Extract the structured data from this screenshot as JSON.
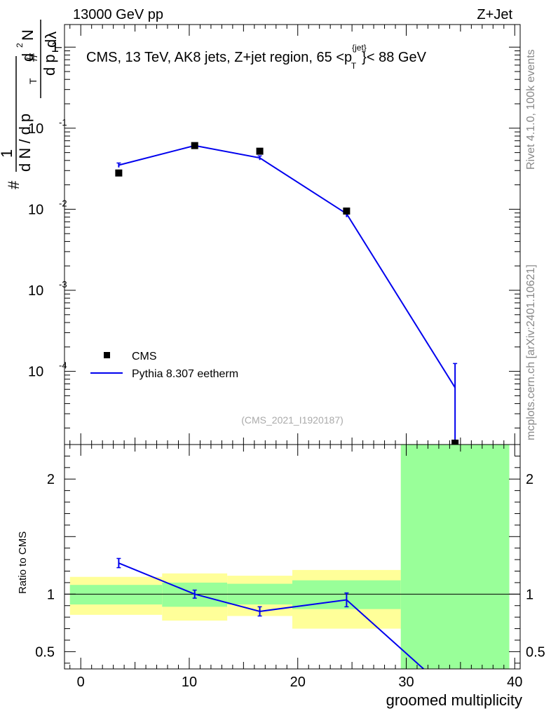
{
  "header": {
    "left_label": "13000 GeV pp",
    "right_label": "Z+Jet"
  },
  "side_labels": {
    "rivet": "Rivet 4.1.0,  100k events",
    "mcplots": "mcplots.cern.ch [arXiv:2401.10621]"
  },
  "chart_data": [
    {
      "type": "scatter",
      "panel": "main",
      "title": "CMS, 13 TeV, AK8 jets, Z+jet region, 65 <p",
      "title_super": "{jet}",
      "title_sub": "T",
      "title_tail": "}< 88 GeV",
      "watermark": "(CMS_2021_I1920187)",
      "ylabel_parts": {
        "hash1": "#",
        "one": "1",
        "dN": "d N / d p",
        "T1": "T",
        "hash2": "#",
        "dp": "d p",
        "T2": "T",
        "d2N": "d",
        "sup2": "2",
        "N": "N",
        "dlambda": "dλ"
      },
      "yscale": "log",
      "ylim": [
        1.25e-05,
        1.9
      ],
      "xlim": [
        -1.5,
        40.5
      ],
      "y_ticks": [
        {
          "value": 1,
          "base": "1",
          "exp": ""
        },
        {
          "value": 0.1,
          "base": "10",
          "exp": "-1"
        },
        {
          "value": 0.01,
          "base": "10",
          "exp": "-2"
        },
        {
          "value": 0.001,
          "base": "10",
          "exp": "-3"
        },
        {
          "value": 0.0001,
          "base": "10",
          "exp": "-4"
        }
      ],
      "legend": [
        {
          "label": "CMS",
          "marker": "square",
          "color": "#000000"
        },
        {
          "label": "Pythia 8.307 eetherm",
          "marker": "line",
          "color": "#0000ee"
        }
      ],
      "series": [
        {
          "name": "CMS",
          "color": "#000000",
          "x": [
            3.5,
            10.5,
            16.5,
            24.5,
            34.5
          ],
          "y": [
            0.028,
            0.061,
            0.052,
            0.0095,
            1.25e-05
          ]
        },
        {
          "name": "Pythia 8.307 eetherm",
          "color": "#0000ee",
          "x": [
            3.5,
            10.5,
            16.5,
            24.5,
            34.5
          ],
          "y": [
            0.035,
            0.061,
            0.043,
            0.0088,
            6.3e-05
          ],
          "err_lo": [
            0.0022,
            0.0025,
            0.0025,
            0.0008,
            5.8e-05
          ],
          "err_hi": [
            0.0022,
            0.0025,
            0.0025,
            0.0008,
            6.2e-05
          ]
        }
      ]
    },
    {
      "type": "line",
      "panel": "ratio",
      "ylabel": "Ratio to CMS",
      "xlabel": "groomed multiplicity",
      "ylim": [
        0.35,
        2.3
      ],
      "xlim": [
        -1.5,
        40.5
      ],
      "x_ticks": [
        0,
        10,
        20,
        30,
        40
      ],
      "y_ticks": [
        {
          "value": 0.5,
          "label": "0.5"
        },
        {
          "value": 1,
          "label": "1"
        },
        {
          "value": 2,
          "label": "2"
        }
      ],
      "bands": [
        {
          "x0": -1,
          "x1": 7.5,
          "green": [
            0.91,
            1.08
          ],
          "yellow": [
            0.82,
            1.15
          ]
        },
        {
          "x0": 7.5,
          "x1": 13.5,
          "green": [
            0.89,
            1.1
          ],
          "yellow": [
            0.77,
            1.18
          ]
        },
        {
          "x0": 13.5,
          "x1": 19.5,
          "green": [
            0.91,
            1.09
          ],
          "yellow": [
            0.81,
            1.16
          ]
        },
        {
          "x0": 19.5,
          "x1": 29.5,
          "green": [
            0.87,
            1.12
          ],
          "yellow": [
            0.7,
            1.21
          ]
        },
        {
          "x0": 29.5,
          "x1": 39.5,
          "green": [
            0.35,
            2.3
          ],
          "yellow": [
            0.35,
            2.3
          ]
        }
      ],
      "series": [
        {
          "name": "Pythia 8.307 eetherm",
          "color": "#0000ee",
          "x": [
            3.5,
            10.5,
            16.5,
            24.5,
            31.6
          ],
          "y": [
            1.27,
            1.0,
            0.85,
            0.95,
            0.35
          ],
          "err": [
            0.04,
            0.035,
            0.04,
            0.06,
            0
          ]
        }
      ]
    }
  ]
}
